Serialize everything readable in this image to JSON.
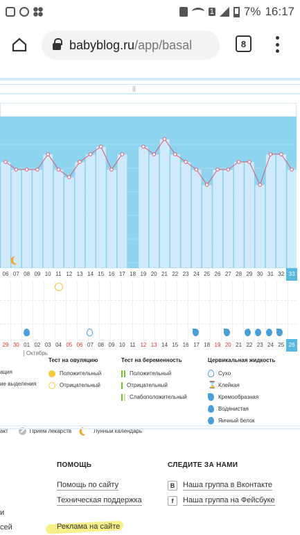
{
  "status_bar": {
    "battery": "7%",
    "time": "16:17",
    "sim_slot": "1"
  },
  "browser": {
    "url_host": "babyblog.ru",
    "url_path": "/app/basal",
    "tab_count": "8"
  },
  "chart": {
    "days": [
      "06",
      "07",
      "08",
      "09",
      "10",
      "11",
      "12",
      "13",
      "14",
      "15",
      "16",
      "17",
      "18",
      "19",
      "20",
      "21",
      "22",
      "23",
      "24",
      "25",
      "26",
      "27",
      "28",
      "29",
      "30",
      "31",
      "32",
      "33"
    ],
    "highlight_day": "33",
    "dates": [
      {
        "t": "29",
        "red": true
      },
      {
        "t": "30",
        "red": true
      },
      {
        "t": "01",
        "red": false
      },
      {
        "t": "02",
        "red": false
      },
      {
        "t": "03",
        "red": false
      },
      {
        "t": "04",
        "red": false
      },
      {
        "t": "05",
        "red": true
      },
      {
        "t": "06",
        "red": true
      },
      {
        "t": "07",
        "red": false
      },
      {
        "t": "08",
        "red": false
      },
      {
        "t": "09",
        "red": false
      },
      {
        "t": "10",
        "red": false
      },
      {
        "t": "11",
        "red": false
      },
      {
        "t": "12",
        "red": true
      },
      {
        "t": "13",
        "red": true
      },
      {
        "t": "14",
        "red": false
      },
      {
        "t": "15",
        "red": false
      },
      {
        "t": "16",
        "red": false
      },
      {
        "t": "17",
        "red": false
      },
      {
        "t": "18",
        "red": false
      },
      {
        "t": "19",
        "red": true
      },
      {
        "t": "20",
        "red": true
      },
      {
        "t": "21",
        "red": false
      },
      {
        "t": "22",
        "red": false
      },
      {
        "t": "23",
        "red": false
      },
      {
        "t": "24",
        "red": false
      },
      {
        "t": "25",
        "red": false
      },
      {
        "t": "26",
        "red": false
      }
    ],
    "highlight_date": "26",
    "month": "Октябрь",
    "levels": [
      7,
      6,
      6,
      6,
      8,
      6,
      5,
      7,
      8,
      9,
      6,
      8,
      null,
      9,
      8,
      10,
      8,
      7,
      6,
      4,
      6,
      6,
      7,
      7,
      4,
      8,
      8,
      6
    ],
    "colors": {
      "bar": "#cfeafa",
      "bar_border": "#8ccde8",
      "line": "#d85a75",
      "bg": "#8fd4ef"
    }
  },
  "legend": {
    "col0": {
      "items": [
        "ация",
        "ие выделения"
      ]
    },
    "ovulation": {
      "title": "Тест на овуляцию",
      "positive": "Положительный",
      "negative": "Отрицательный"
    },
    "pregnancy": {
      "title": "Тест на беременность",
      "positive": "Положительный",
      "negative": "Отрицательный",
      "weak": "Слабоположительный"
    },
    "cervical": {
      "title": "Цервикальная жидкость",
      "dry": "Сухо",
      "sticky": "Клейкая",
      "creamy": "Кремообразная",
      "watery": "Водянистая",
      "eggwhite": "Яичный белок"
    },
    "bottom": {
      "contact": "акт",
      "meds": "Прием лекарств",
      "lunar": "Лунный календарь"
    }
  },
  "footer": {
    "help_title": "ПОМОЩЬ",
    "help_site": "Помощь по сайту",
    "support": "Техническая поддержка",
    "ads": "Реклама на сайте",
    "follow_title": "СЛЕДИТЕ ЗА НАМИ",
    "vk": "Наша группа в Вконтакте",
    "fb": "Наша группа на Фейсбуке",
    "vk_letter": "B",
    "fb_letter": "f",
    "cut1": "и",
    "cut2": "сей"
  }
}
